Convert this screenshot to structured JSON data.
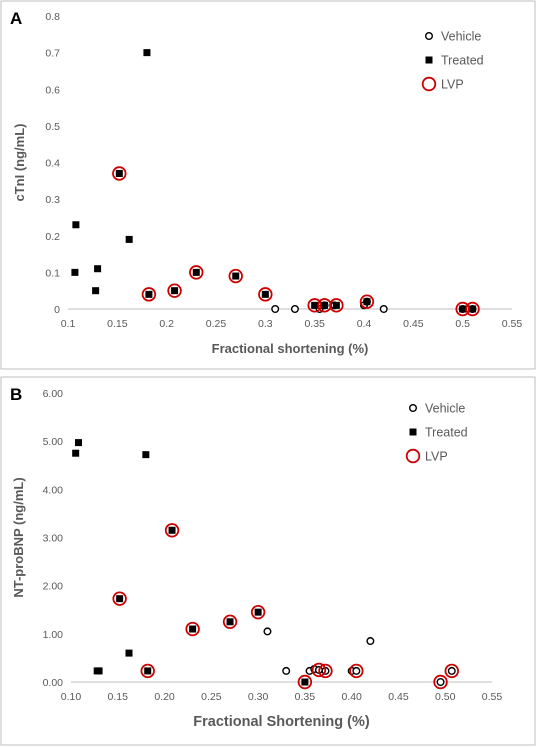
{
  "chart_data": [
    {
      "panel_label": "A",
      "type": "scatter",
      "xlabel": "Fractional shortening (%)",
      "ylabel": "cTnI (ng/mL)",
      "xlim": [
        0.1,
        0.55
      ],
      "ylim": [
        0,
        0.8
      ],
      "xticks": [
        "0.1",
        "0.15",
        "0.2",
        "0.25",
        "0.3",
        "0.35",
        "0.4",
        "0.45",
        "0.5",
        "0.55"
      ],
      "yticks": [
        "0",
        "0.1",
        "0.2",
        "0.3",
        "0.4",
        "0.5",
        "0.6",
        "0.7",
        "0.8"
      ],
      "grid": false,
      "legend_position": "top-right",
      "series": [
        {
          "name": "Vehicle",
          "marker": "open-circle",
          "color": "#000000",
          "points": [
            [
              0.31,
              0.0
            ],
            [
              0.33,
              0.0
            ],
            [
              0.355,
              0.0
            ],
            [
              0.36,
              0.01
            ],
            [
              0.37,
              0.01
            ],
            [
              0.4,
              0.01
            ],
            [
              0.403,
              0.02
            ],
            [
              0.42,
              0.0
            ],
            [
              0.5,
              0.0
            ],
            [
              0.51,
              0.0
            ]
          ]
        },
        {
          "name": "Treated",
          "marker": "filled-square",
          "color": "#000000",
          "points": [
            [
              0.107,
              0.1
            ],
            [
              0.108,
              0.23
            ],
            [
              0.128,
              0.05
            ],
            [
              0.13,
              0.11
            ],
            [
              0.152,
              0.37
            ],
            [
              0.162,
              0.19
            ],
            [
              0.18,
              0.7
            ],
            [
              0.182,
              0.04
            ],
            [
              0.208,
              0.05
            ],
            [
              0.23,
              0.1
            ],
            [
              0.27,
              0.09
            ],
            [
              0.3,
              0.04
            ],
            [
              0.35,
              0.01
            ],
            [
              0.36,
              0.01
            ],
            [
              0.372,
              0.01
            ],
            [
              0.403,
              0.02
            ],
            [
              0.5,
              0.0
            ],
            [
              0.51,
              0.0
            ]
          ]
        },
        {
          "name": "LVP",
          "marker": "red-open-circle",
          "color": "#cc0000",
          "points": [
            [
              0.152,
              0.37
            ],
            [
              0.182,
              0.04
            ],
            [
              0.208,
              0.05
            ],
            [
              0.23,
              0.1
            ],
            [
              0.27,
              0.09
            ],
            [
              0.3,
              0.04
            ],
            [
              0.35,
              0.01
            ],
            [
              0.36,
              0.01
            ],
            [
              0.372,
              0.01
            ],
            [
              0.403,
              0.02
            ],
            [
              0.5,
              0.0
            ],
            [
              0.51,
              0.0
            ]
          ]
        }
      ]
    },
    {
      "panel_label": "B",
      "type": "scatter",
      "xlabel": "Fractional Shortening (%)",
      "ylabel": "NT-proBNP (ng/mL)",
      "xlim": [
        0.1,
        0.55
      ],
      "ylim": [
        0,
        6
      ],
      "xticks": [
        "0.10",
        "0.15",
        "0.20",
        "0.25",
        "0.30",
        "0.35",
        "0.40",
        "0.45",
        "0.50",
        "0.55"
      ],
      "yticks": [
        "0.00",
        "1.00",
        "2.00",
        "3.00",
        "4.00",
        "5.00",
        "6.00"
      ],
      "grid": false,
      "legend_position": "top-right",
      "series": [
        {
          "name": "Vehicle",
          "marker": "open-circle",
          "color": "#000000",
          "points": [
            [
              0.31,
              1.05
            ],
            [
              0.33,
              0.23
            ],
            [
              0.355,
              0.23
            ],
            [
              0.36,
              0.27
            ],
            [
              0.365,
              0.25
            ],
            [
              0.372,
              0.23
            ],
            [
              0.4,
              0.23
            ],
            [
              0.405,
              0.23
            ],
            [
              0.42,
              0.85
            ],
            [
              0.495,
              0.0
            ],
            [
              0.507,
              0.23
            ]
          ]
        },
        {
          "name": "Treated",
          "marker": "filled-square",
          "color": "#000000",
          "points": [
            [
              0.105,
              4.75
            ],
            [
              0.108,
              4.97
            ],
            [
              0.128,
              0.23
            ],
            [
              0.13,
              0.23
            ],
            [
              0.152,
              1.73
            ],
            [
              0.162,
              0.6
            ],
            [
              0.18,
              4.72
            ],
            [
              0.182,
              0.23
            ],
            [
              0.208,
              3.15
            ],
            [
              0.23,
              1.1
            ],
            [
              0.27,
              1.25
            ],
            [
              0.3,
              1.45
            ],
            [
              0.35,
              0.0
            ]
          ]
        },
        {
          "name": "LVP",
          "marker": "red-open-circle",
          "color": "#cc0000",
          "points": [
            [
              0.152,
              1.73
            ],
            [
              0.182,
              0.23
            ],
            [
              0.208,
              3.15
            ],
            [
              0.23,
              1.1
            ],
            [
              0.27,
              1.25
            ],
            [
              0.3,
              1.45
            ],
            [
              0.35,
              0.0
            ],
            [
              0.365,
              0.25
            ],
            [
              0.372,
              0.23
            ],
            [
              0.405,
              0.23
            ],
            [
              0.495,
              0.0
            ],
            [
              0.507,
              0.23
            ]
          ]
        }
      ]
    }
  ]
}
